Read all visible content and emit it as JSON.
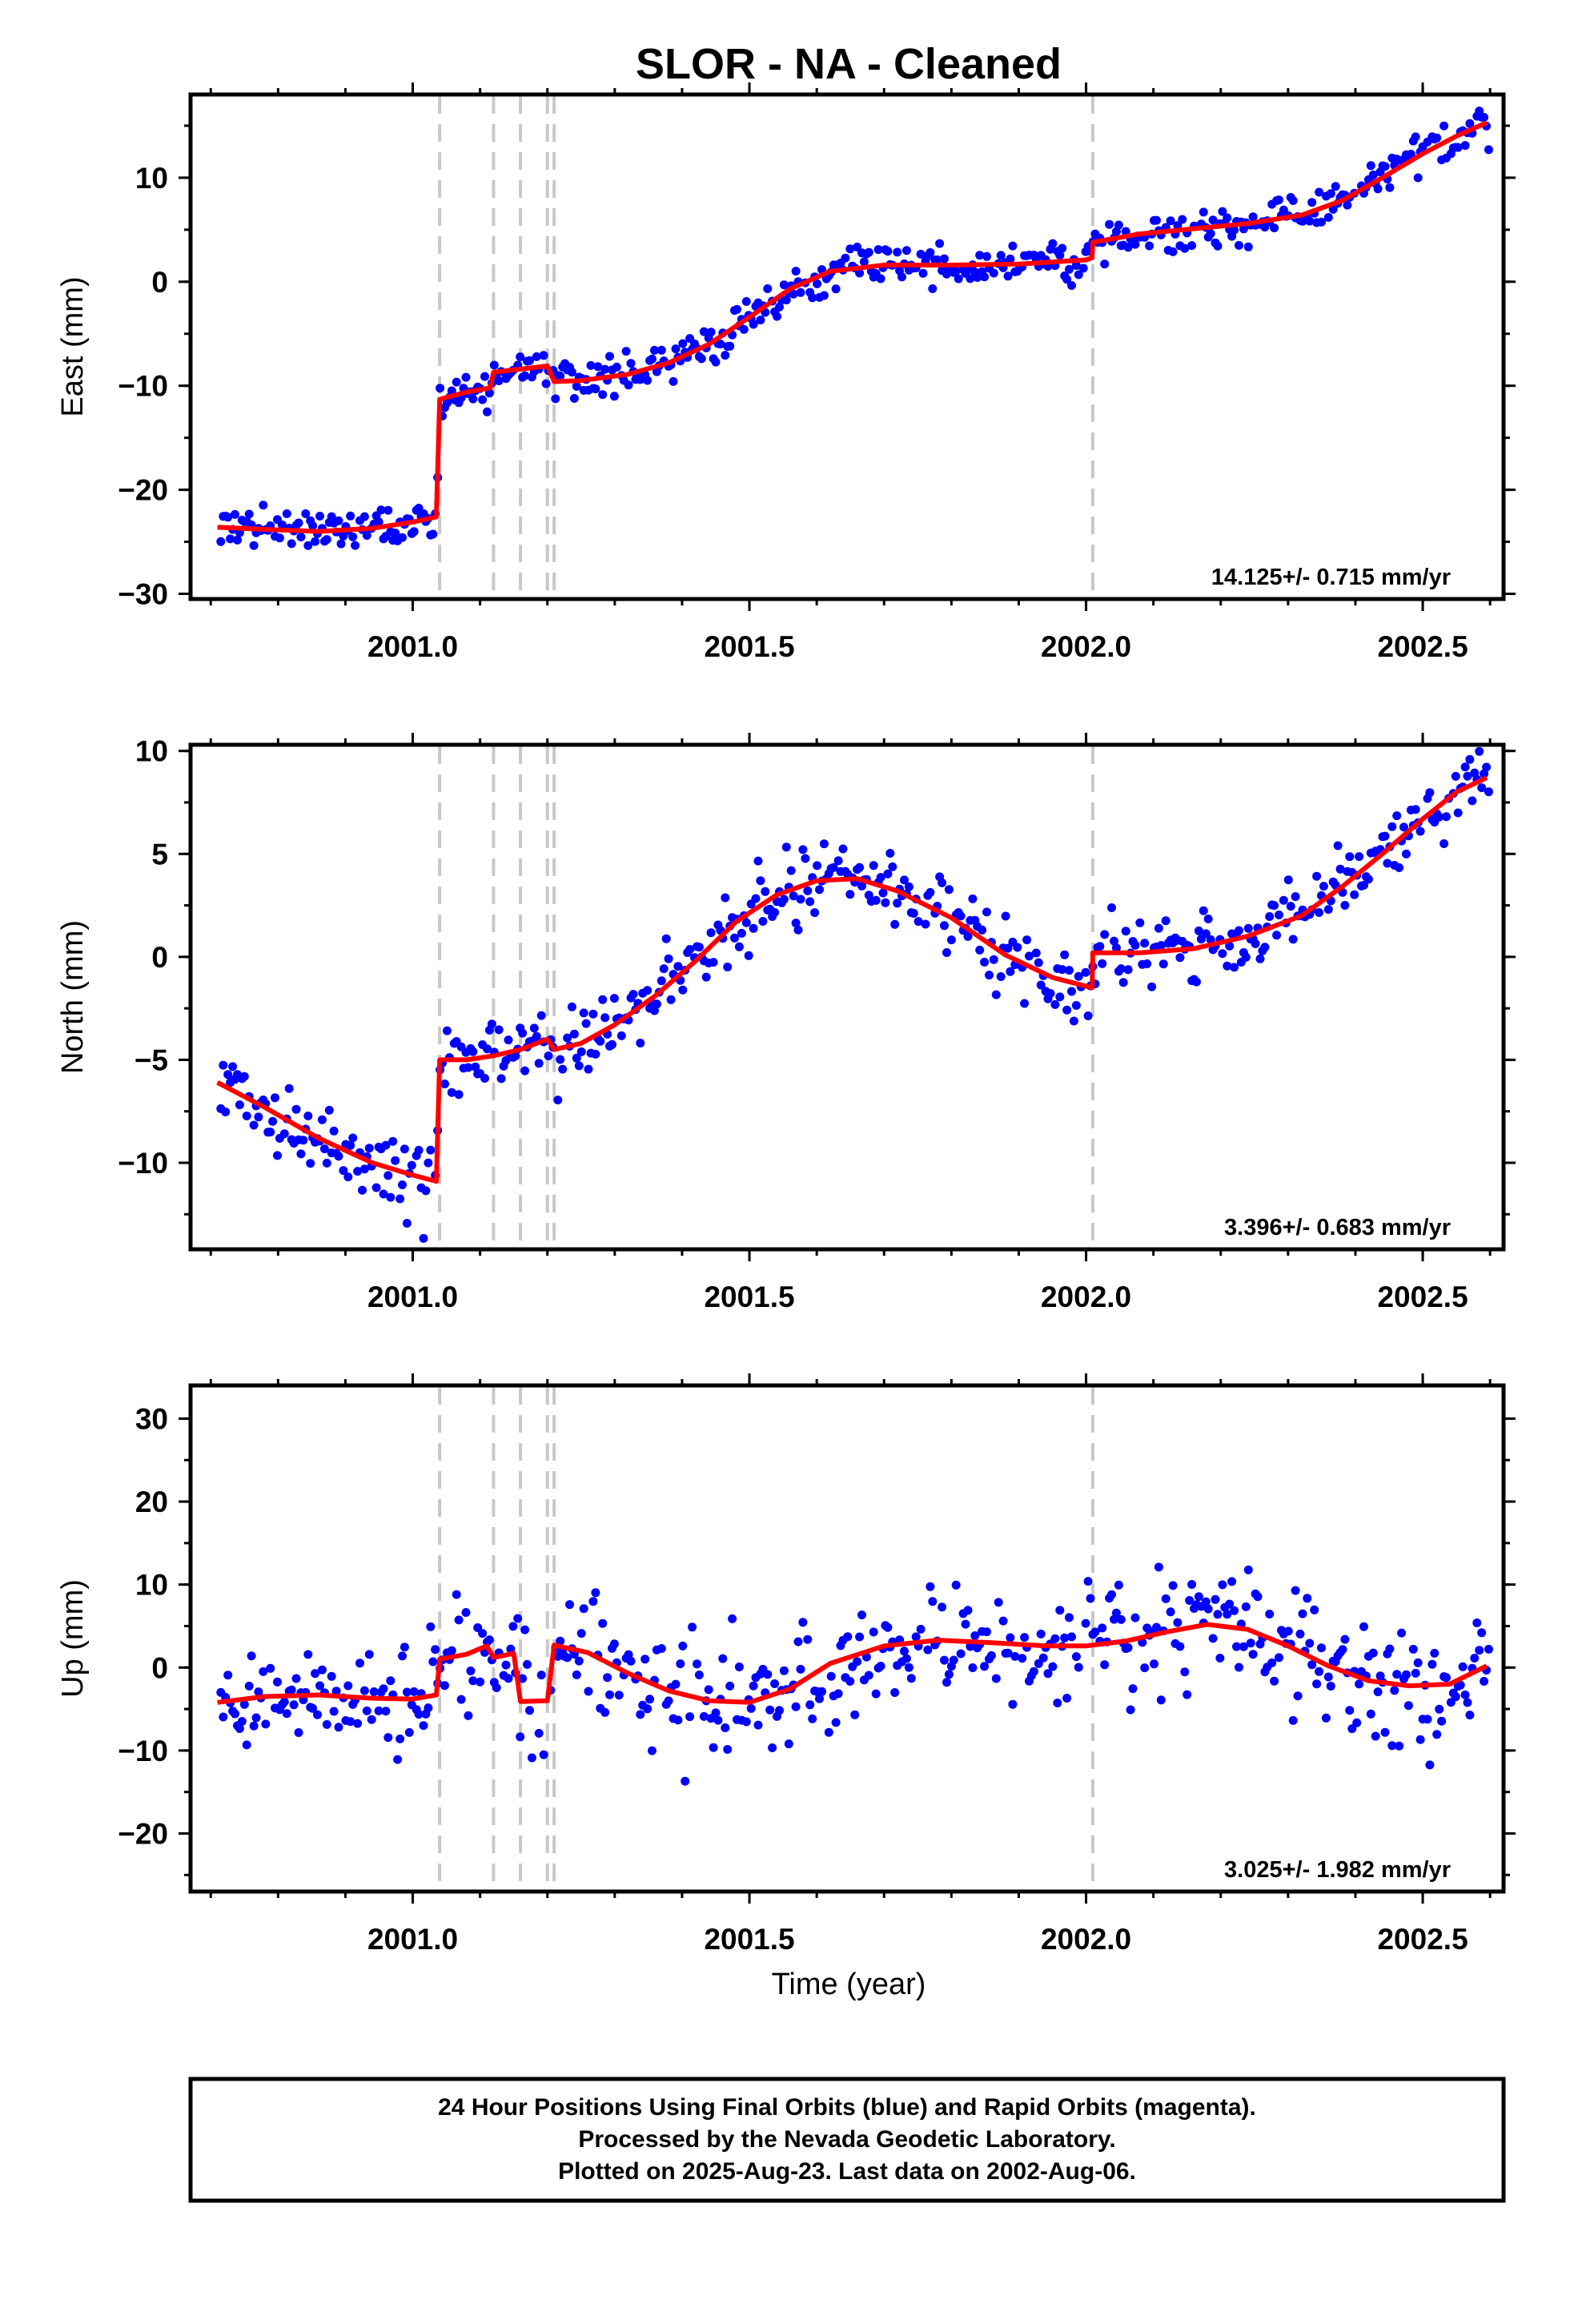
{
  "title": "SLOR  - NA - Cleaned",
  "xlabel": "Time (year)",
  "footer": {
    "line1": "24 Hour Positions Using Final Orbits (blue) and Rapid Orbits (magenta).",
    "line2": "Processed by the Nevada Geodetic Laboratory.",
    "line3": "Plotted on 2025-Aug-23. Last data on 2002-Aug-06."
  },
  "colors": {
    "points": "#0000ff",
    "fit": "#ff0000",
    "event_lines": "#c8c8c8",
    "frame": "#000000"
  },
  "chart_data": [
    {
      "type": "scatter",
      "panel": "east",
      "ylabel": "East (mm)",
      "rate_label": "14.125+/- 0.715 mm/yr",
      "xlim": [
        2000.67,
        2002.62
      ],
      "ylim": [
        -30.5,
        18
      ],
      "xticks": [
        2001.0,
        2001.5,
        2002.0,
        2002.5
      ],
      "xtick_labels": [
        "2001.0",
        "2001.5",
        "2002.0",
        "2002.5"
      ],
      "yticks": [
        -30,
        -20,
        -10,
        0,
        10
      ],
      "ytick_labels": [
        "−30",
        "−20",
        "−10",
        "0",
        "10"
      ],
      "events": [
        2001.04,
        2001.12,
        2001.16,
        2001.2,
        2001.21,
        2002.01
      ],
      "fit": [
        [
          2000.71,
          -23.6
        ],
        [
          2000.78,
          -23.8
        ],
        [
          2000.86,
          -24.0
        ],
        [
          2000.94,
          -23.7
        ],
        [
          2001.0,
          -23.1
        ],
        [
          2001.035,
          -22.6
        ],
        [
          2001.04,
          -11.3
        ],
        [
          2001.08,
          -10.6
        ],
        [
          2001.115,
          -10.2
        ],
        [
          2001.12,
          -8.7
        ],
        [
          2001.16,
          -8.4
        ],
        [
          2001.2,
          -8.1
        ],
        [
          2001.21,
          -9.6
        ],
        [
          2001.25,
          -9.5
        ],
        [
          2001.32,
          -8.9
        ],
        [
          2001.38,
          -7.8
        ],
        [
          2001.44,
          -6.0
        ],
        [
          2001.5,
          -3.4
        ],
        [
          2001.56,
          -0.7
        ],
        [
          2001.62,
          1.0
        ],
        [
          2001.7,
          1.6
        ],
        [
          2001.8,
          1.6
        ],
        [
          2001.9,
          1.7
        ],
        [
          2002.0,
          2.1
        ],
        [
          2002.009,
          2.3
        ],
        [
          2002.01,
          3.8
        ],
        [
          2002.08,
          4.6
        ],
        [
          2002.16,
          5.1
        ],
        [
          2002.24,
          5.6
        ],
        [
          2002.32,
          6.4
        ],
        [
          2002.38,
          7.8
        ],
        [
          2002.44,
          10.0
        ],
        [
          2002.5,
          12.3
        ],
        [
          2002.55,
          14.0
        ],
        [
          2002.595,
          15.3
        ]
      ],
      "point_params": {
        "noise": 1.8,
        "gaps": [
          [
            2001.82,
            1.92
          ]
        ]
      }
    },
    {
      "type": "scatter",
      "panel": "north",
      "ylabel": "North (mm)",
      "rate_label": "3.396+/- 0.683 mm/yr",
      "xlim": [
        2000.67,
        2002.62
      ],
      "ylim": [
        -14.2,
        10.3
      ],
      "xticks": [
        2001.0,
        2001.5,
        2002.0,
        2002.5
      ],
      "xtick_labels": [
        "2001.0",
        "2001.5",
        "2002.0",
        "2002.5"
      ],
      "yticks": [
        -10,
        -5,
        0,
        5,
        10
      ],
      "ytick_labels": [
        "−10",
        "−5",
        "0",
        "5",
        "10"
      ],
      "events": [
        2001.04,
        2001.12,
        2001.16,
        2001.2,
        2001.21,
        2002.01
      ],
      "fit": [
        [
          2000.71,
          -6.1
        ],
        [
          2000.78,
          -7.3
        ],
        [
          2000.86,
          -8.8
        ],
        [
          2000.94,
          -10.0
        ],
        [
          2001.0,
          -10.6
        ],
        [
          2001.035,
          -10.9
        ],
        [
          2001.04,
          -5.0
        ],
        [
          2001.08,
          -5.0
        ],
        [
          2001.12,
          -4.8
        ],
        [
          2001.16,
          -4.5
        ],
        [
          2001.2,
          -4.0
        ],
        [
          2001.21,
          -4.5
        ],
        [
          2001.25,
          -4.2
        ],
        [
          2001.3,
          -3.3
        ],
        [
          2001.36,
          -1.9
        ],
        [
          2001.42,
          -0.2
        ],
        [
          2001.48,
          1.7
        ],
        [
          2001.54,
          3.0
        ],
        [
          2001.6,
          3.7
        ],
        [
          2001.66,
          3.8
        ],
        [
          2001.72,
          3.2
        ],
        [
          2001.8,
          1.9
        ],
        [
          2001.88,
          0.1
        ],
        [
          2001.95,
          -1.0
        ],
        [
          2002.009,
          -1.5
        ],
        [
          2002.01,
          0.2
        ],
        [
          2002.08,
          0.2
        ],
        [
          2002.16,
          0.4
        ],
        [
          2002.24,
          1.0
        ],
        [
          2002.32,
          2.0
        ],
        [
          2002.38,
          3.4
        ],
        [
          2002.44,
          5.0
        ],
        [
          2002.5,
          6.7
        ],
        [
          2002.55,
          8.0
        ],
        [
          2002.595,
          8.7
        ]
      ],
      "point_params": {
        "noise": 1.6,
        "gaps": [
          [
            2001.82,
            1.92
          ]
        ]
      }
    },
    {
      "type": "scatter",
      "panel": "up",
      "ylabel": "Up (mm)",
      "rate_label": "3.025+/- 1.982 mm/yr",
      "xlim": [
        2000.67,
        2002.62
      ],
      "ylim": [
        -27,
        34
      ],
      "xticks": [
        2001.0,
        2001.5,
        2002.0,
        2002.5
      ],
      "xtick_labels": [
        "2001.0",
        "2001.5",
        "2002.0",
        "2002.5"
      ],
      "yticks": [
        -20,
        -10,
        0,
        10,
        20,
        30
      ],
      "ytick_labels": [
        "−20",
        "−10",
        "0",
        "10",
        "20",
        "30"
      ],
      "events": [
        2001.04,
        2001.12,
        2001.16,
        2001.2,
        2001.21,
        2002.01
      ],
      "fit": [
        [
          2000.71,
          -4.2
        ],
        [
          2000.78,
          -3.5
        ],
        [
          2000.86,
          -3.3
        ],
        [
          2000.94,
          -3.7
        ],
        [
          2001.0,
          -3.8
        ],
        [
          2001.035,
          -3.3
        ],
        [
          2001.04,
          1.0
        ],
        [
          2001.08,
          1.6
        ],
        [
          2001.11,
          2.6
        ],
        [
          2001.12,
          1.2
        ],
        [
          2001.15,
          1.7
        ],
        [
          2001.16,
          -4.1
        ],
        [
          2001.2,
          -4.0
        ],
        [
          2001.21,
          2.7
        ],
        [
          2001.26,
          1.8
        ],
        [
          2001.32,
          -0.7
        ],
        [
          2001.38,
          -2.8
        ],
        [
          2001.44,
          -4.0
        ],
        [
          2001.5,
          -4.2
        ],
        [
          2001.56,
          -2.6
        ],
        [
          2001.62,
          0.5
        ],
        [
          2001.7,
          2.6
        ],
        [
          2001.78,
          3.3
        ],
        [
          2001.86,
          3.0
        ],
        [
          2001.94,
          2.6
        ],
        [
          2002.0,
          2.6
        ],
        [
          2002.06,
          3.2
        ],
        [
          2002.12,
          4.3
        ],
        [
          2002.18,
          5.2
        ],
        [
          2002.24,
          4.6
        ],
        [
          2002.3,
          2.6
        ],
        [
          2002.36,
          0.2
        ],
        [
          2002.42,
          -1.6
        ],
        [
          2002.48,
          -2.2
        ],
        [
          2002.54,
          -2.0
        ],
        [
          2002.595,
          0.2
        ]
      ],
      "point_params": {
        "noise": 6.5,
        "gaps": [
          [
            2001.82,
            1.92
          ]
        ]
      }
    }
  ]
}
